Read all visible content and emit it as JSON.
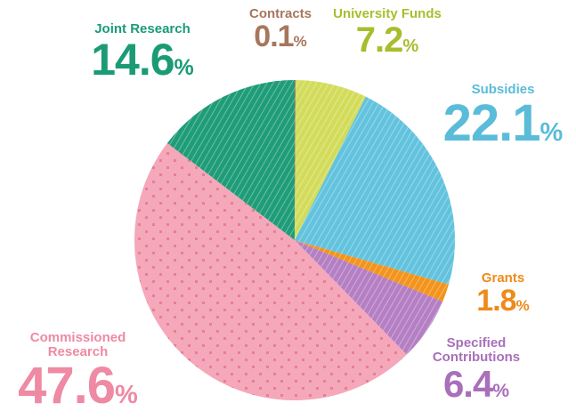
{
  "chart_data": {
    "type": "pie",
    "unit": "%",
    "categories": [
      "Contracts",
      "University Funds",
      "Subsidies",
      "Grants",
      "Specified Contributions",
      "Commissioned Research",
      "Joint Research"
    ],
    "values": [
      0.1,
      7.2,
      22.1,
      1.8,
      6.4,
      47.6,
      14.6
    ],
    "colors": [
      "#b0785c",
      "#d3dc5a",
      "#63c3de",
      "#f3941c",
      "#b57fc4",
      "#f5a8b9",
      "#1f9c78"
    ],
    "label_colors": [
      "#a8765c",
      "#a9bd2c",
      "#5bbcd9",
      "#ef8a1a",
      "#a96fba",
      "#ee8aa3",
      "#1a9b76"
    ]
  }
}
